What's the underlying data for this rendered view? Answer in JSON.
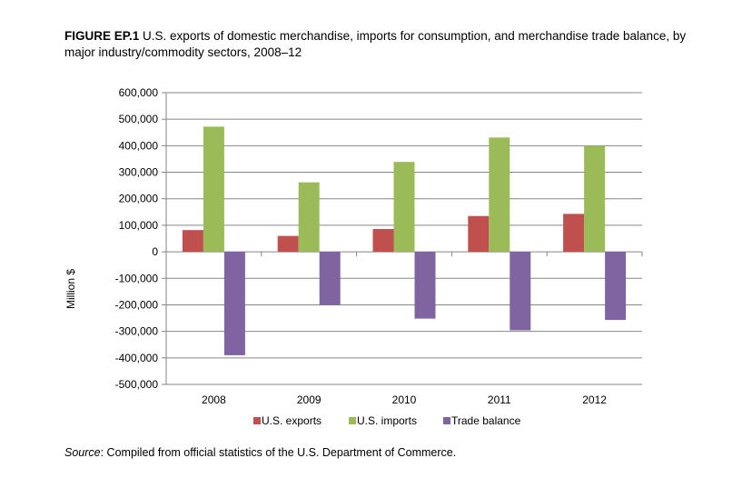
{
  "caption": {
    "figure_label": "FIGURE EP.1",
    "text": "U.S. exports of domestic merchandise, imports for consumption, and merchandise trade balance, by major industry/commodity sectors, 2008–12"
  },
  "source": {
    "label": "Source",
    "text": ": Compiled from official statistics of the U.S. Department of Commerce."
  },
  "chart_data": {
    "type": "bar",
    "title": "",
    "xlabel": "",
    "ylabel": "Million $",
    "categories": [
      "2008",
      "2009",
      "2010",
      "2011",
      "2012"
    ],
    "series": [
      {
        "name": "U.S. exports",
        "color": "#c0504d",
        "values": [
          82000,
          60000,
          86000,
          135000,
          143000
        ]
      },
      {
        "name": "U.S. imports",
        "color": "#9bbb59",
        "values": [
          472000,
          262000,
          339000,
          431000,
          400000
        ]
      },
      {
        "name": "Trade balance",
        "color": "#8064a2",
        "values": [
          -390000,
          -201000,
          -252000,
          -296000,
          -257000
        ]
      }
    ],
    "ylim": [
      -500000,
      600000
    ],
    "yticks": [
      600000,
      500000,
      400000,
      300000,
      200000,
      100000,
      0,
      -100000,
      -200000,
      -300000,
      -400000,
      -500000
    ],
    "ytick_labels": [
      "600,000",
      "500,000",
      "400,000",
      "300,000",
      "200,000",
      "100,000",
      "0",
      "-100,000",
      "-200,000",
      "-300,000",
      "-400,000",
      "-500,000"
    ],
    "grid": true,
    "legend_position": "bottom"
  }
}
